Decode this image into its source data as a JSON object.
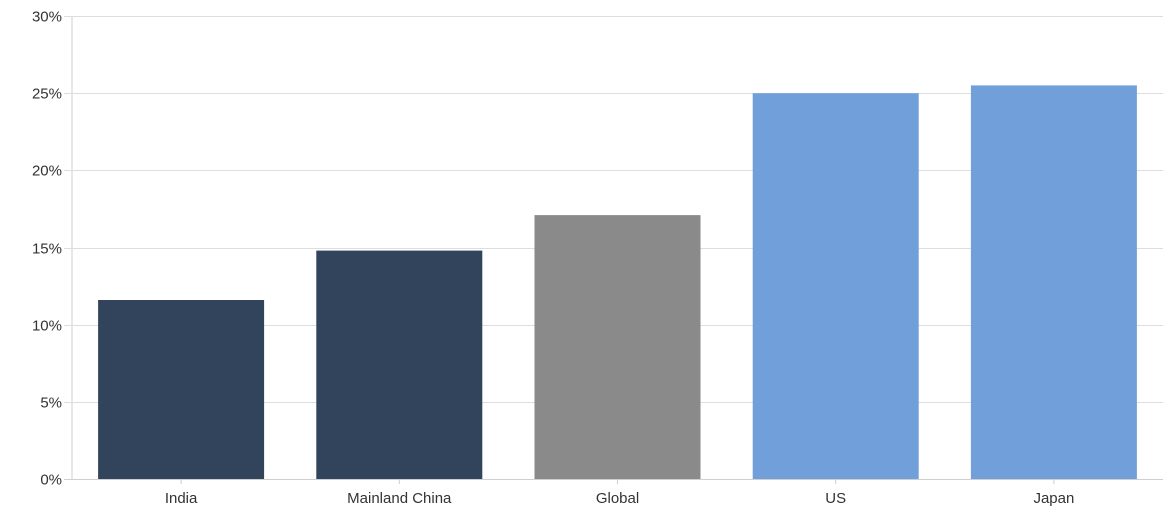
{
  "chart_data": {
    "type": "bar",
    "categories": [
      "India",
      "Mainland China",
      "Global",
      "US",
      "Japan"
    ],
    "values": [
      11.6,
      14.8,
      17.1,
      25.0,
      25.5
    ],
    "colors": [
      "#31445b",
      "#31445b",
      "#8a8a8a",
      "#719fda",
      "#719fda"
    ],
    "ylim": [
      0,
      30
    ],
    "yticks": [
      0,
      5,
      10,
      15,
      20,
      25,
      30
    ],
    "ytick_labels": [
      "0%",
      "5%",
      "10%",
      "15%",
      "20%",
      "25%",
      "30%"
    ],
    "grid": true,
    "legend": "none",
    "title": "",
    "xlabel": "",
    "ylabel": ""
  }
}
